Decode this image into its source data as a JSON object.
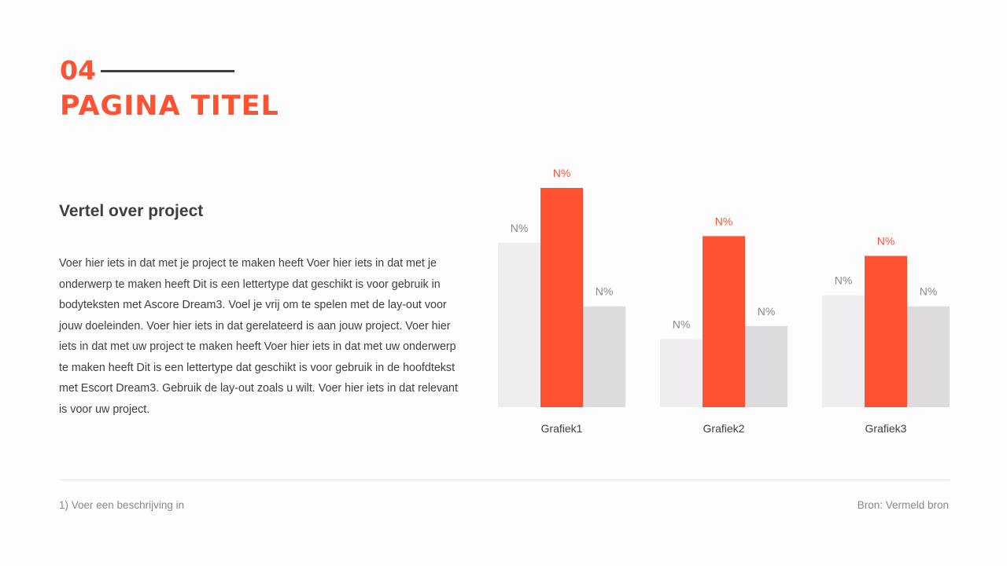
{
  "header": {
    "number": "04",
    "title": "Pagina titel"
  },
  "content": {
    "subtitle": "Vertel over project",
    "body": "Voer hier iets in dat met je project te maken heeft Voer hier iets in dat met je onderwerp te maken heeft Dit is een lettertype dat geschikt is voor gebruik in bodyteksten met Ascore Dream3. Voel je vrij om te spelen met de lay-out voor jouw doeleinden. Voer hier iets in dat gerelateerd is aan jouw project. Voer hier iets in dat met uw project te maken heeft Voer hier iets in dat met uw onderwerp te maken heeft Dit is een lettertype dat geschikt is voor gebruik in de hoofdtekst met Escort Dream3. Gebruik de lay-out zoals u wilt. Voer hier iets in dat relevant is voor uw project."
  },
  "footer": {
    "note": "1) Voer een beschrijving in",
    "source": "Bron: Vermeld bron"
  },
  "colors": {
    "accent": "#ff5233",
    "light_bar": "#efedf0",
    "grey_bar": "#dddbde",
    "text": "#3f3f42"
  },
  "chart_data": {
    "type": "bar",
    "categories": [
      "Grafiek1",
      "Grafiek2",
      "Grafiek3"
    ],
    "series": [
      {
        "values": [
          75,
          31,
          51
        ],
        "labels": [
          "N%",
          "N%",
          "N%"
        ],
        "color": "#efedf0"
      },
      {
        "values": [
          100,
          78,
          69
        ],
        "labels": [
          "N%",
          "N%",
          "N%"
        ],
        "color": "#ff5233"
      },
      {
        "values": [
          46,
          37,
          46
        ],
        "labels": [
          "N%",
          "N%",
          "N%"
        ],
        "color": "#dddbde"
      }
    ],
    "ylim": [
      0,
      100
    ],
    "grid": false,
    "axes_visible": false
  }
}
